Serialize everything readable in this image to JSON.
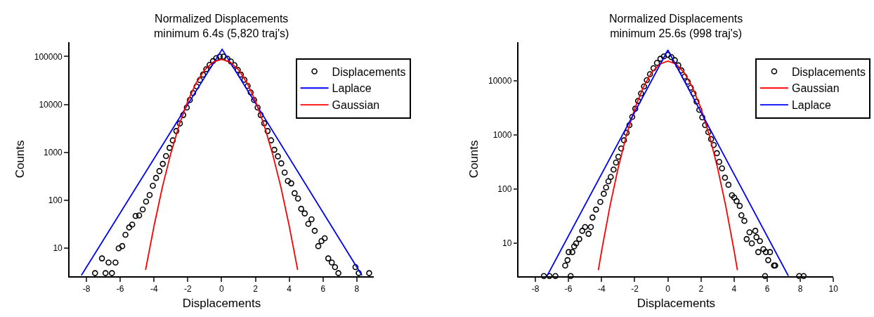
{
  "chart_data": [
    {
      "type": "scatter",
      "title": "Normalized Displacements\nminimum 6.4s (5,820 traj's)",
      "xlabel": "Displacements",
      "ylabel": "Counts",
      "log": "y",
      "xlim": [
        -9,
        9
      ],
      "ylim": [
        2.6,
        200000
      ],
      "xticks": [
        -8,
        -6,
        -4,
        -2,
        0,
        2,
        4,
        6,
        8
      ],
      "yticks": [
        10,
        100,
        1000,
        10000,
        100000
      ],
      "grid": false,
      "legend": "top right",
      "series": [
        {
          "name": "Displacements",
          "marker": "circle",
          "color": "#000000",
          "x": [
            -7.49,
            -7.08,
            -6.87,
            -6.69,
            -6.49,
            -6.28,
            -6.09,
            -5.88,
            -5.69,
            -5.47,
            -5.29,
            -5.09,
            -4.88,
            -4.67,
            -4.47,
            -4.26,
            -4.07,
            -3.88,
            -3.68,
            -3.48,
            -3.29,
            -3.08,
            -2.89,
            -2.68,
            -2.47,
            -2.27,
            -2.06,
            -1.88,
            -1.69,
            -1.48,
            -1.29,
            -1.1,
            -0.91,
            -0.71,
            -0.51,
            -0.32,
            -0.11,
            0.11,
            0.34,
            0.55,
            0.76,
            0.96,
            1.14,
            1.35,
            1.54,
            1.72,
            1.92,
            2.13,
            2.31,
            2.52,
            2.72,
            2.93,
            3.12,
            3.33,
            3.53,
            3.73,
            3.92,
            4.12,
            4.32,
            4.52,
            4.71,
            4.92,
            5.13,
            5.32,
            5.51,
            5.72,
            5.91,
            6.1,
            6.31,
            6.52,
            6.71,
            6.91,
            7.92,
            8.11,
            8.73
          ],
          "values": [
            3.0,
            6.1,
            3.0,
            5.0,
            3.0,
            5.0,
            9.9,
            11,
            19,
            27,
            31,
            47,
            48,
            64,
            94,
            128,
            201,
            292,
            406,
            575,
            835,
            1240,
            1780,
            2790,
            4010,
            6020,
            8630,
            12400,
            17400,
            23800,
            32300,
            42000,
            54400,
            67300,
            80700,
            92500,
            100000,
            100000,
            90300,
            78900,
            65900,
            52500,
            42000,
            32700,
            24400,
            17800,
            12400,
            8630,
            6020,
            4050,
            2790,
            1780,
            1130,
            826,
            589,
            378,
            252,
            225,
            140,
            108,
            66,
            53,
            32,
            40,
            23,
            11,
            14,
            16,
            6.1,
            5.0,
            4.0,
            3.0,
            4.0,
            3.0,
            3.0
          ]
        },
        {
          "name": "Laplace",
          "type": "line",
          "marker": "none",
          "color": "#0000ff",
          "x": [
            -8.3,
            0.03,
            8.3
          ],
          "values": [
            2.7,
            142000,
            2.7
          ]
        },
        {
          "name": "Gaussian",
          "type": "line",
          "marker": "none",
          "color": "#ff0000",
          "x": [
            -4.5,
            -4,
            -3.5,
            -3,
            -2.5,
            -2,
            -1.5,
            -1,
            -0.5,
            0,
            0.5,
            1,
            1.5,
            2,
            2.5,
            3,
            3.5,
            4,
            4.5
          ],
          "values": [
            3.5,
            29,
            192,
            970,
            3850,
            11800,
            28400,
            53000,
            77100,
            87300,
            77100,
            53000,
            28400,
            11800,
            3850,
            970,
            192,
            29,
            3.5
          ]
        }
      ]
    },
    {
      "type": "scatter",
      "title": "Normalized Displacements\nminimum 25.6s (998 traj's)",
      "xlabel": "Displacements",
      "ylabel": "Counts",
      "log": "y",
      "xlim": [
        -9,
        10
      ],
      "ylim": [
        2.49,
        51000
      ],
      "xticks": [
        -8,
        -6,
        -4,
        -2,
        0,
        2,
        4,
        6,
        8,
        10
      ],
      "yticks": [
        10,
        100,
        1000,
        10000
      ],
      "grid": false,
      "legend": "top right",
      "series": [
        {
          "name": "Displacements",
          "marker": "circle",
          "color": "#000000",
          "x": [
            -7.49,
            -7.15,
            -6.79,
            -6.2,
            -6.06,
            -5.99,
            -5.87,
            -5.77,
            -5.66,
            -5.54,
            -5.35,
            -5.17,
            -5.0,
            -4.79,
            -4.65,
            -4.55,
            -4.34,
            -4.08,
            -3.87,
            -3.73,
            -3.59,
            -3.45,
            -3.28,
            -3.13,
            -2.99,
            -2.82,
            -2.65,
            -2.49,
            -2.32,
            -2.15,
            -1.97,
            -1.8,
            -1.62,
            -1.44,
            -1.27,
            -1.08,
            -0.87,
            -0.66,
            -0.45,
            -0.24,
            0,
            0.21,
            0.42,
            0.63,
            0.82,
            1.01,
            1.2,
            1.38,
            1.55,
            1.73,
            1.9,
            2.08,
            2.25,
            2.44,
            2.61,
            2.77,
            2.96,
            3.1,
            3.27,
            3.45,
            3.66,
            3.87,
            4.01,
            4.15,
            4.34,
            4.44,
            4.62,
            4.76,
            4.93,
            5.07,
            5.28,
            5.35,
            5.46,
            5.56,
            5.77,
            5.87,
            5.92,
            6.06,
            6.17,
            6.41,
            6.48,
            7.93,
            8.2
          ],
          "values": [
            2.5,
            2.5,
            2.5,
            3.9,
            4.9,
            6.9,
            2.5,
            6.9,
            8.8,
            10,
            12,
            17,
            20,
            15,
            20,
            30,
            42,
            58,
            82,
            107,
            139,
            167,
            229,
            308,
            395,
            560,
            793,
            1090,
            1510,
            2140,
            3030,
            4210,
            5790,
            7800,
            10200,
            13100,
            16900,
            21100,
            25200,
            27800,
            29900,
            27000,
            23700,
            19100,
            15400,
            11800,
            9500,
            7400,
            5790,
            4090,
            2890,
            2100,
            1510,
            1120,
            834,
            650,
            459,
            318,
            241,
            162,
            120,
            77,
            70,
            60,
            49,
            33,
            26,
            12,
            16,
            10,
            17,
            13,
            6.9,
            11,
            7.8,
            2.5,
            6.9,
            4.9,
            6.9,
            3.9,
            3.9,
            2.5,
            2.5
          ]
        },
        {
          "name": "Gaussian",
          "type": "line",
          "marker": "none",
          "color": "#ff0000",
          "x": [
            -4.2,
            -4,
            -3.5,
            -3,
            -2.5,
            -2,
            -1.5,
            -1,
            -0.5,
            0,
            0.5,
            1,
            1.5,
            2,
            2.5,
            3,
            3.5,
            4,
            4.2
          ],
          "values": [
            3.2,
            7.3,
            48,
            247,
            990,
            3050,
            7360,
            13800,
            20100,
            22800,
            20100,
            13800,
            7360,
            3050,
            990,
            247,
            48,
            7.3,
            3.2
          ]
        },
        {
          "name": "Laplace",
          "type": "line",
          "marker": "none",
          "color": "#0000ff",
          "x": [
            -7.3,
            0,
            7.28
          ],
          "values": [
            2.5,
            36400,
            2.5
          ]
        }
      ]
    }
  ]
}
